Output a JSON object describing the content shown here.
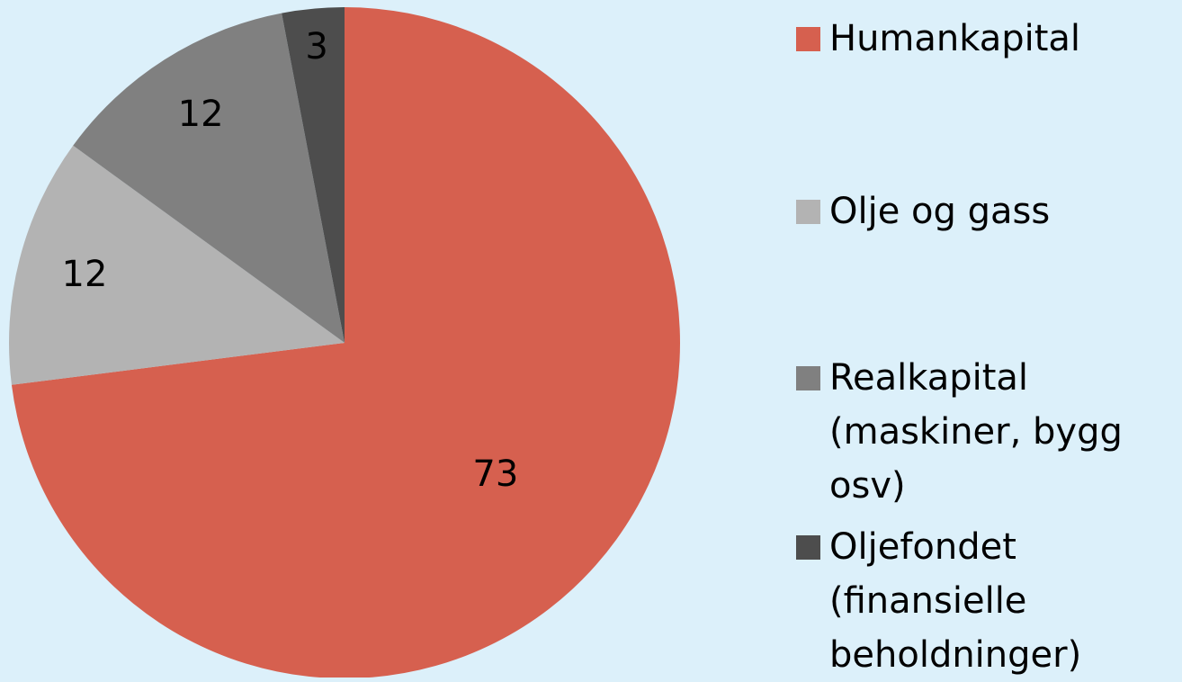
{
  "chart_data": {
    "type": "pie",
    "categories": [
      "Humankapital",
      "Olje og gass",
      "Realkapital (maskiner, bygg osv)",
      "Oljefondet (finansielle beholdninger)"
    ],
    "values": [
      73,
      12,
      12,
      3
    ],
    "colors": [
      "#d6604f",
      "#b3b3b3",
      "#808080",
      "#4d4d4d"
    ],
    "legend": "right"
  }
}
